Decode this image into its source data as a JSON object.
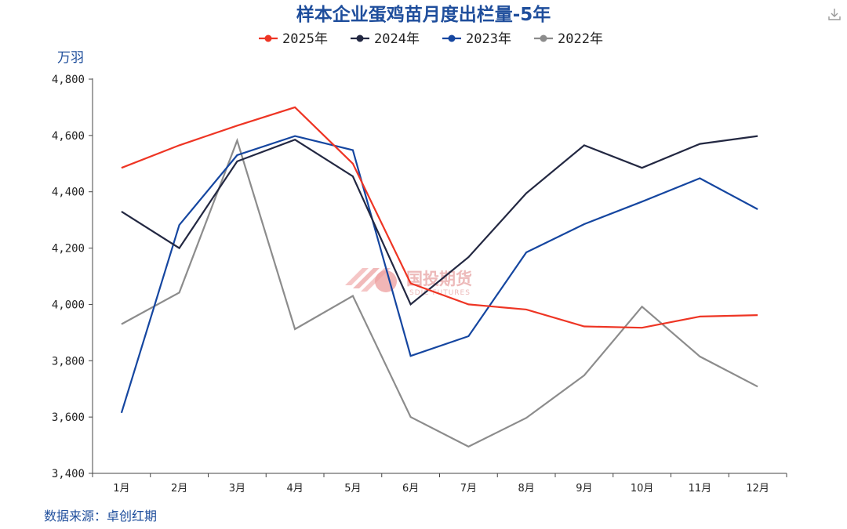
{
  "chart_data": {
    "type": "line",
    "title": "样本企业蛋鸡苗月度出栏量-5年",
    "ylabel": "万羽",
    "xlabel": "",
    "ylim": [
      3400,
      4800
    ],
    "ytick_step": 200,
    "ytick_labels": [
      "3,400",
      "3,600",
      "3,800",
      "4,000",
      "4,200",
      "4,400",
      "4,600",
      "4,800"
    ],
    "categories": [
      "1月",
      "2月",
      "3月",
      "4月",
      "5月",
      "6月",
      "7月",
      "8月",
      "9月",
      "10月",
      "11月",
      "12月"
    ],
    "legend_position": "top-center",
    "grid": false,
    "series": [
      {
        "name": "2025年",
        "color": "#ee3524",
        "values": [
          4485,
          4565,
          4635,
          4700,
          4500,
          4075,
          4000,
          3982,
          3922,
          3917,
          3957,
          3962
        ]
      },
      {
        "name": "2024年",
        "color": "#232842",
        "values": [
          4330,
          4200,
          4508,
          4585,
          4455,
          4000,
          4168,
          4395,
          4565,
          4485,
          4570,
          4598
        ]
      },
      {
        "name": "2023年",
        "color": "#1546a0",
        "values": [
          3615,
          4282,
          4530,
          4598,
          4548,
          3817,
          3887,
          4185,
          4285,
          4365,
          4448,
          4338
        ]
      },
      {
        "name": "2022年",
        "color": "#8c8c8c",
        "values": [
          3930,
          4042,
          4582,
          3912,
          4030,
          3600,
          3495,
          3597,
          3748,
          3992,
          3815,
          3708
        ]
      }
    ]
  },
  "source_note": "数据来源：卓创红期",
  "watermark": {
    "text": "国投期货",
    "sub": "SDIC FUTURES"
  },
  "download_icon": "download-icon"
}
